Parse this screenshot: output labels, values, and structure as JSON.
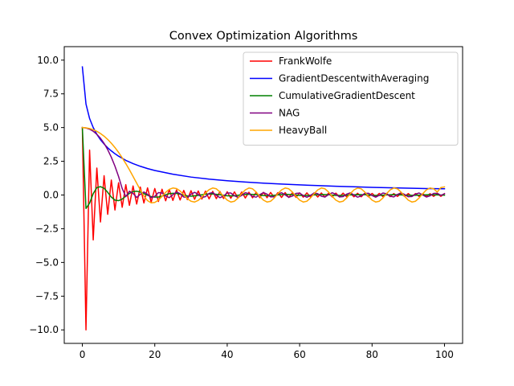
{
  "chart_data": {
    "type": "line",
    "title": "Convex Optimization Algorithms",
    "xlabel": "",
    "ylabel": "",
    "xlim": [
      -5,
      105
    ],
    "ylim": [
      -11,
      11
    ],
    "xticks": [
      0,
      20,
      40,
      60,
      80,
      100
    ],
    "xtick_labels": [
      "0",
      "20",
      "40",
      "60",
      "80",
      "100"
    ],
    "yticks": [
      10,
      7.5,
      5,
      2.5,
      0,
      -2.5,
      -5,
      -7.5,
      -10
    ],
    "ytick_labels": [
      "10.0",
      "7.5",
      "5.0",
      "2.5",
      "0.0",
      "−2.5",
      "−5.0",
      "−7.5",
      "−10.0"
    ],
    "grid": false,
    "legend_position": "top-right",
    "series": [
      {
        "name": "FrankWolfe",
        "color": "#ff0000",
        "x": [
          0,
          1,
          2,
          3,
          4,
          5,
          6,
          7,
          8,
          9,
          10,
          11,
          12,
          13,
          14,
          15,
          16,
          17,
          18,
          19,
          20,
          21,
          22,
          23,
          24,
          25,
          26,
          27,
          28,
          29,
          30,
          31,
          32,
          33,
          34,
          35,
          36,
          37,
          38,
          39,
          40,
          41,
          42,
          43,
          44,
          45,
          46,
          47,
          48,
          49,
          50,
          51,
          52,
          53,
          54,
          55,
          56,
          57,
          58,
          59,
          60,
          61,
          62,
          63,
          64,
          65,
          66,
          67,
          68,
          69,
          70,
          71,
          72,
          73,
          74,
          75,
          76,
          77,
          78,
          79,
          80,
          81,
          82,
          83,
          84,
          85,
          86,
          87,
          88,
          89,
          90,
          91,
          92,
          93,
          94,
          95,
          96,
          97,
          98,
          99,
          100
        ],
        "y": [
          5.0,
          -10.0,
          3.33,
          -3.33,
          2.0,
          -2.0,
          1.43,
          -1.43,
          1.11,
          -1.11,
          0.91,
          -0.91,
          0.77,
          -0.77,
          0.67,
          -0.67,
          0.59,
          -0.59,
          0.53,
          -0.53,
          0.48,
          -0.48,
          0.43,
          -0.43,
          0.4,
          -0.4,
          0.37,
          -0.37,
          0.34,
          -0.34,
          0.32,
          -0.32,
          0.3,
          -0.3,
          0.29,
          -0.29,
          0.27,
          -0.27,
          0.26,
          -0.26,
          0.24,
          -0.24,
          0.23,
          -0.23,
          0.22,
          -0.22,
          0.21,
          -0.21,
          0.2,
          -0.2,
          0.2,
          -0.2,
          0.19,
          -0.19,
          0.18,
          -0.18,
          0.18,
          -0.18,
          0.17,
          -0.17,
          0.16,
          -0.16,
          0.16,
          -0.16,
          0.15,
          -0.15,
          0.15,
          -0.15,
          0.14,
          -0.14,
          0.14,
          -0.14,
          0.14,
          -0.14,
          0.13,
          -0.13,
          0.13,
          -0.13,
          0.13,
          -0.13,
          0.12,
          -0.12,
          0.12,
          -0.12,
          0.12,
          -0.12,
          0.11,
          -0.11,
          0.11,
          -0.11,
          0.11,
          -0.11,
          0.11,
          -0.11,
          0.1,
          -0.1,
          0.1,
          -0.1,
          0.1,
          -0.1,
          0.1
        ]
      },
      {
        "name": "GradientDescentwithAveraging",
        "color": "#0000ff",
        "x": [
          0,
          1,
          2,
          3,
          4,
          5,
          6,
          7,
          8,
          9,
          10,
          12,
          14,
          16,
          18,
          20,
          25,
          30,
          35,
          40,
          45,
          50,
          55,
          60,
          65,
          70,
          75,
          80,
          85,
          90,
          95,
          100
        ],
        "y": [
          9.5,
          6.75,
          5.67,
          5.0,
          4.5,
          4.1,
          3.78,
          3.5,
          3.27,
          3.06,
          2.88,
          2.57,
          2.33,
          2.13,
          1.96,
          1.82,
          1.54,
          1.33,
          1.18,
          1.06,
          0.96,
          0.88,
          0.81,
          0.75,
          0.7,
          0.65,
          0.61,
          0.57,
          0.54,
          0.51,
          0.48,
          0.46
        ]
      },
      {
        "name": "CumulativeGradientDescent",
        "color": "#008000",
        "x": [
          0,
          1,
          2,
          3,
          4,
          5,
          6,
          7,
          8,
          9,
          10,
          11,
          12,
          13,
          14,
          15,
          16,
          17,
          18,
          19,
          20,
          21,
          22,
          23,
          24,
          25,
          26,
          27,
          28,
          29,
          30,
          32,
          34,
          36,
          38,
          40,
          42,
          44,
          46,
          48,
          50,
          52,
          54,
          56,
          58,
          60,
          62,
          64,
          66,
          68,
          70,
          72,
          74,
          76,
          78,
          80,
          82,
          84,
          86,
          88,
          90,
          92,
          94,
          96,
          98,
          100
        ],
        "y": [
          5.0,
          -1.0,
          -0.6,
          0.1,
          0.55,
          0.62,
          0.5,
          0.2,
          -0.15,
          -0.38,
          -0.42,
          -0.3,
          -0.08,
          0.12,
          0.25,
          0.28,
          0.22,
          0.1,
          -0.02,
          -0.12,
          -0.16,
          -0.15,
          -0.08,
          0.02,
          0.1,
          0.13,
          0.12,
          0.06,
          -0.02,
          -0.07,
          -0.09,
          -0.03,
          0.06,
          0.08,
          0.02,
          -0.06,
          -0.06,
          0.02,
          0.06,
          0.03,
          -0.04,
          -0.05,
          0.01,
          0.05,
          0.03,
          -0.03,
          -0.04,
          0.01,
          0.04,
          0.02,
          -0.03,
          -0.03,
          0.01,
          0.03,
          0.02,
          -0.02,
          -0.03,
          0.01,
          0.03,
          0.01,
          -0.02,
          -0.02,
          0.01,
          0.02,
          0.01,
          -0.01
        ]
      },
      {
        "name": "NAG",
        "color": "#800080",
        "x": [
          0,
          1,
          2,
          3,
          4,
          5,
          6,
          7,
          8,
          9,
          10,
          11,
          12,
          13,
          14,
          15,
          16,
          17,
          18,
          19,
          20,
          21,
          22,
          23,
          24,
          25,
          26,
          27,
          28,
          29,
          30,
          31,
          32,
          33,
          34,
          35,
          36,
          37,
          38,
          39,
          40,
          41,
          42,
          43,
          44,
          45,
          46,
          47,
          48,
          49,
          50,
          51,
          52,
          53,
          54,
          55,
          56,
          57,
          58,
          59,
          60,
          61,
          62,
          63,
          64,
          65,
          66,
          67,
          68,
          69,
          70,
          71,
          72,
          73,
          74,
          75,
          76,
          77,
          78,
          79,
          80,
          81,
          82,
          83,
          84,
          85,
          86,
          87,
          88,
          89,
          90,
          91,
          92,
          93,
          94,
          95,
          96,
          97,
          98,
          99,
          100
        ],
        "y": [
          5.0,
          4.97,
          4.88,
          4.73,
          4.5,
          4.21,
          3.83,
          3.36,
          2.8,
          2.14,
          1.37,
          0.48,
          -0.12,
          0.28,
          0.12,
          -0.18,
          0.05,
          0.22,
          0.05,
          -0.2,
          -0.1,
          0.18,
          0.15,
          -0.08,
          -0.2,
          0.02,
          0.22,
          0.1,
          -0.15,
          -0.18,
          0.06,
          0.2,
          0.05,
          -0.18,
          -0.12,
          0.12,
          0.18,
          -0.02,
          -0.2,
          -0.08,
          0.15,
          0.15,
          -0.05,
          -0.18,
          -0.03,
          0.17,
          0.1,
          -0.1,
          -0.16,
          0.03,
          0.18,
          0.06,
          -0.14,
          -0.13,
          0.07,
          0.17,
          0.01,
          -0.17,
          -0.08,
          0.12,
          0.14,
          -0.04,
          -0.17,
          -0.03,
          0.15,
          0.1,
          -0.09,
          -0.15,
          0.03,
          0.17,
          0.05,
          -0.14,
          -0.12,
          0.07,
          0.16,
          0.0,
          -0.16,
          -0.07,
          0.12,
          0.13,
          -0.04,
          -0.16,
          -0.02,
          0.15,
          0.09,
          -0.09,
          -0.14,
          0.04,
          0.16,
          0.04,
          -0.13,
          -0.11,
          0.07,
          0.15,
          0.0,
          -0.15,
          -0.06,
          0.12,
          0.13,
          -0.03,
          0.1
        ]
      },
      {
        "name": "HeavyBall",
        "color": "#ffa500",
        "x": [
          0,
          1,
          2,
          3,
          4,
          5,
          6,
          7,
          8,
          9,
          10,
          11,
          12,
          13,
          14,
          15,
          16,
          17,
          18,
          19,
          20,
          21,
          22,
          23,
          24,
          25,
          26,
          27,
          28,
          29,
          30,
          31,
          32,
          33,
          34,
          35,
          36,
          37,
          38,
          39,
          40,
          41,
          42,
          43,
          44,
          45,
          46,
          47,
          48,
          49,
          50,
          51,
          52,
          53,
          54,
          55,
          56,
          57,
          58,
          59,
          60,
          61,
          62,
          63,
          64,
          65,
          66,
          67,
          68,
          69,
          70,
          71,
          72,
          73,
          74,
          75,
          76,
          77,
          78,
          79,
          80,
          81,
          82,
          83,
          84,
          85,
          86,
          87,
          88,
          89,
          90,
          91,
          92,
          93,
          94,
          95,
          96,
          97,
          98,
          99,
          100
        ],
        "y": [
          5.0,
          4.98,
          4.93,
          4.84,
          4.72,
          4.56,
          4.36,
          4.12,
          3.84,
          3.52,
          3.16,
          2.76,
          2.33,
          1.87,
          1.38,
          0.88,
          0.38,
          -0.08,
          -0.42,
          -0.58,
          -0.55,
          -0.38,
          -0.1,
          0.2,
          0.42,
          0.52,
          0.48,
          0.3,
          0.02,
          -0.27,
          -0.46,
          -0.52,
          -0.4,
          -0.15,
          0.15,
          0.4,
          0.52,
          0.46,
          0.22,
          -0.1,
          -0.38,
          -0.52,
          -0.46,
          -0.22,
          0.1,
          0.38,
          0.52,
          0.46,
          0.22,
          -0.1,
          -0.38,
          -0.52,
          -0.46,
          -0.22,
          0.1,
          0.38,
          0.52,
          0.46,
          0.22,
          -0.1,
          -0.38,
          -0.52,
          -0.46,
          -0.22,
          0.1,
          0.38,
          0.52,
          0.46,
          0.22,
          -0.1,
          -0.38,
          -0.52,
          -0.46,
          -0.22,
          0.1,
          0.38,
          0.52,
          0.46,
          0.22,
          -0.1,
          -0.38,
          -0.52,
          -0.46,
          -0.22,
          0.1,
          0.38,
          0.52,
          0.46,
          0.22,
          -0.1,
          -0.38,
          -0.52,
          -0.46,
          -0.22,
          0.1,
          0.38,
          0.52,
          0.46,
          0.22,
          0.55,
          0.6
        ]
      }
    ]
  }
}
